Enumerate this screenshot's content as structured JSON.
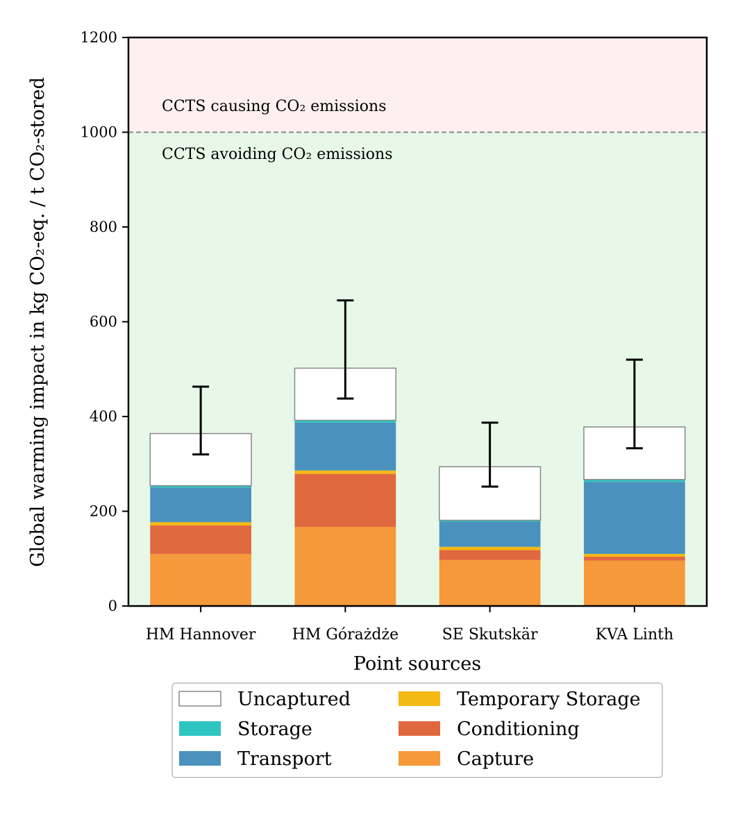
{
  "chart_data": {
    "type": "bar",
    "stacked": true,
    "title": "",
    "xlabel": "Point sources",
    "ylabel": "Global warming impact in kg CO₂-eq. / t CO₂-stored",
    "ylim": [
      0,
      1200
    ],
    "yticks": [
      "0",
      "200",
      "400",
      "600",
      "800",
      "1000",
      "1200"
    ],
    "categories": [
      "HM Hannover",
      "HM Górażdże",
      "SE Skutskär",
      "KVA Linth"
    ],
    "series": [
      {
        "name": "Capture",
        "color": "#f5993a",
        "values": [
          110,
          167,
          97,
          96
        ]
      },
      {
        "name": "Conditioning",
        "color": "#e0683f",
        "values": [
          60,
          112,
          21,
          8
        ]
      },
      {
        "name": "Temporary Storage",
        "color": "#f5b914",
        "values": [
          7,
          7,
          7,
          6
        ]
      },
      {
        "name": "Transport",
        "color": "#4b91bd",
        "values": [
          73,
          101,
          53,
          152
        ]
      },
      {
        "name": "Storage",
        "color": "#2ec4c0",
        "values": [
          4,
          5,
          3,
          5
        ]
      },
      {
        "name": "Uncaptured",
        "color": "#ffffff",
        "values": [
          110,
          110,
          113,
          111
        ]
      }
    ],
    "error_bars": {
      "center": [
        392,
        541,
        320,
        426
      ],
      "low": [
        320,
        438,
        252,
        333
      ],
      "high": [
        463,
        645,
        387,
        520
      ]
    },
    "threshold": {
      "value": 1000,
      "line_color": "#888888"
    },
    "zones": {
      "above_label": "CCTS causing CO₂ emissions",
      "below_label": "CCTS avoiding CO₂ emissions",
      "above_color": "#fff0f0",
      "below_color": "#e8f8e8"
    },
    "legend": {
      "placement": "below",
      "columns": 2,
      "order": [
        "Uncaptured",
        "Storage",
        "Transport",
        "Temporary Storage",
        "Conditioning",
        "Capture"
      ]
    },
    "grid": false
  }
}
